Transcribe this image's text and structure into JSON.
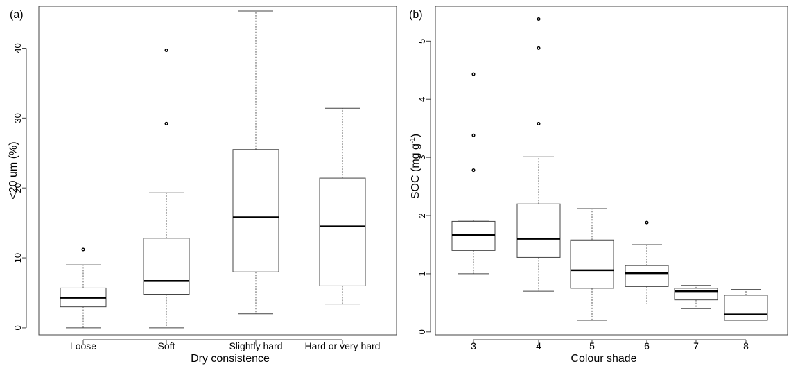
{
  "chart_data": [
    {
      "type": "boxplot",
      "panel_label": "(a)",
      "xlabel": "Dry consistence",
      "ylabel": "<20 um (%)",
      "ylim": [
        -1,
        46
      ],
      "yticks": [
        0,
        10,
        20,
        30,
        40
      ],
      "categories": [
        "Loose",
        "Soft",
        "Slightly hard",
        "Hard or very hard"
      ],
      "boxes": [
        {
          "whisker_low": 0,
          "q1": 3.0,
          "median": 4.3,
          "q3": 5.7,
          "whisker_high": 9.0,
          "outliers": [
            11.2
          ]
        },
        {
          "whisker_low": 0,
          "q1": 4.8,
          "median": 6.7,
          "q3": 12.8,
          "whisker_high": 19.3,
          "outliers": [
            29.2,
            39.7
          ]
        },
        {
          "whisker_low": 2.0,
          "q1": 8.0,
          "median": 15.8,
          "q3": 25.5,
          "whisker_high": 45.3,
          "outliers": []
        },
        {
          "whisker_low": 3.4,
          "q1": 6.0,
          "median": 14.5,
          "q3": 21.4,
          "whisker_high": 31.4,
          "outliers": []
        }
      ]
    },
    {
      "type": "boxplot",
      "panel_label": "(b)",
      "xlabel": "Colour shade",
      "ylabel": "SOC (mg g",
      "ylabel_sup": "-1",
      "ylabel_end": ")",
      "ylim": [
        -0.05,
        5.6
      ],
      "yticks": [
        0,
        1,
        2,
        3,
        4,
        5
      ],
      "categories": [
        "3",
        "4",
        "5",
        "6",
        "7",
        "8"
      ],
      "boxes": [
        {
          "whisker_low": 1.0,
          "q1": 1.4,
          "median": 1.67,
          "q3": 1.9,
          "whisker_high": 1.92,
          "outliers": [
            2.78,
            3.38,
            4.43
          ]
        },
        {
          "whisker_low": 0.7,
          "q1": 1.28,
          "median": 1.6,
          "q3": 2.2,
          "whisker_high": 3.01,
          "outliers": [
            3.58,
            4.88,
            5.38
          ]
        },
        {
          "whisker_low": 0.2,
          "q1": 0.75,
          "median": 1.06,
          "q3": 1.58,
          "whisker_high": 2.12,
          "outliers": []
        },
        {
          "whisker_low": 0.48,
          "q1": 0.78,
          "median": 1.01,
          "q3": 1.14,
          "whisker_high": 1.5,
          "outliers": [
            1.88
          ]
        },
        {
          "whisker_low": 0.4,
          "q1": 0.55,
          "median": 0.7,
          "q3": 0.75,
          "whisker_high": 0.8,
          "outliers": []
        },
        {
          "whisker_low": 0.2,
          "q1": 0.2,
          "median": 0.3,
          "q3": 0.63,
          "whisker_high": 0.73,
          "outliers": []
        }
      ]
    }
  ]
}
